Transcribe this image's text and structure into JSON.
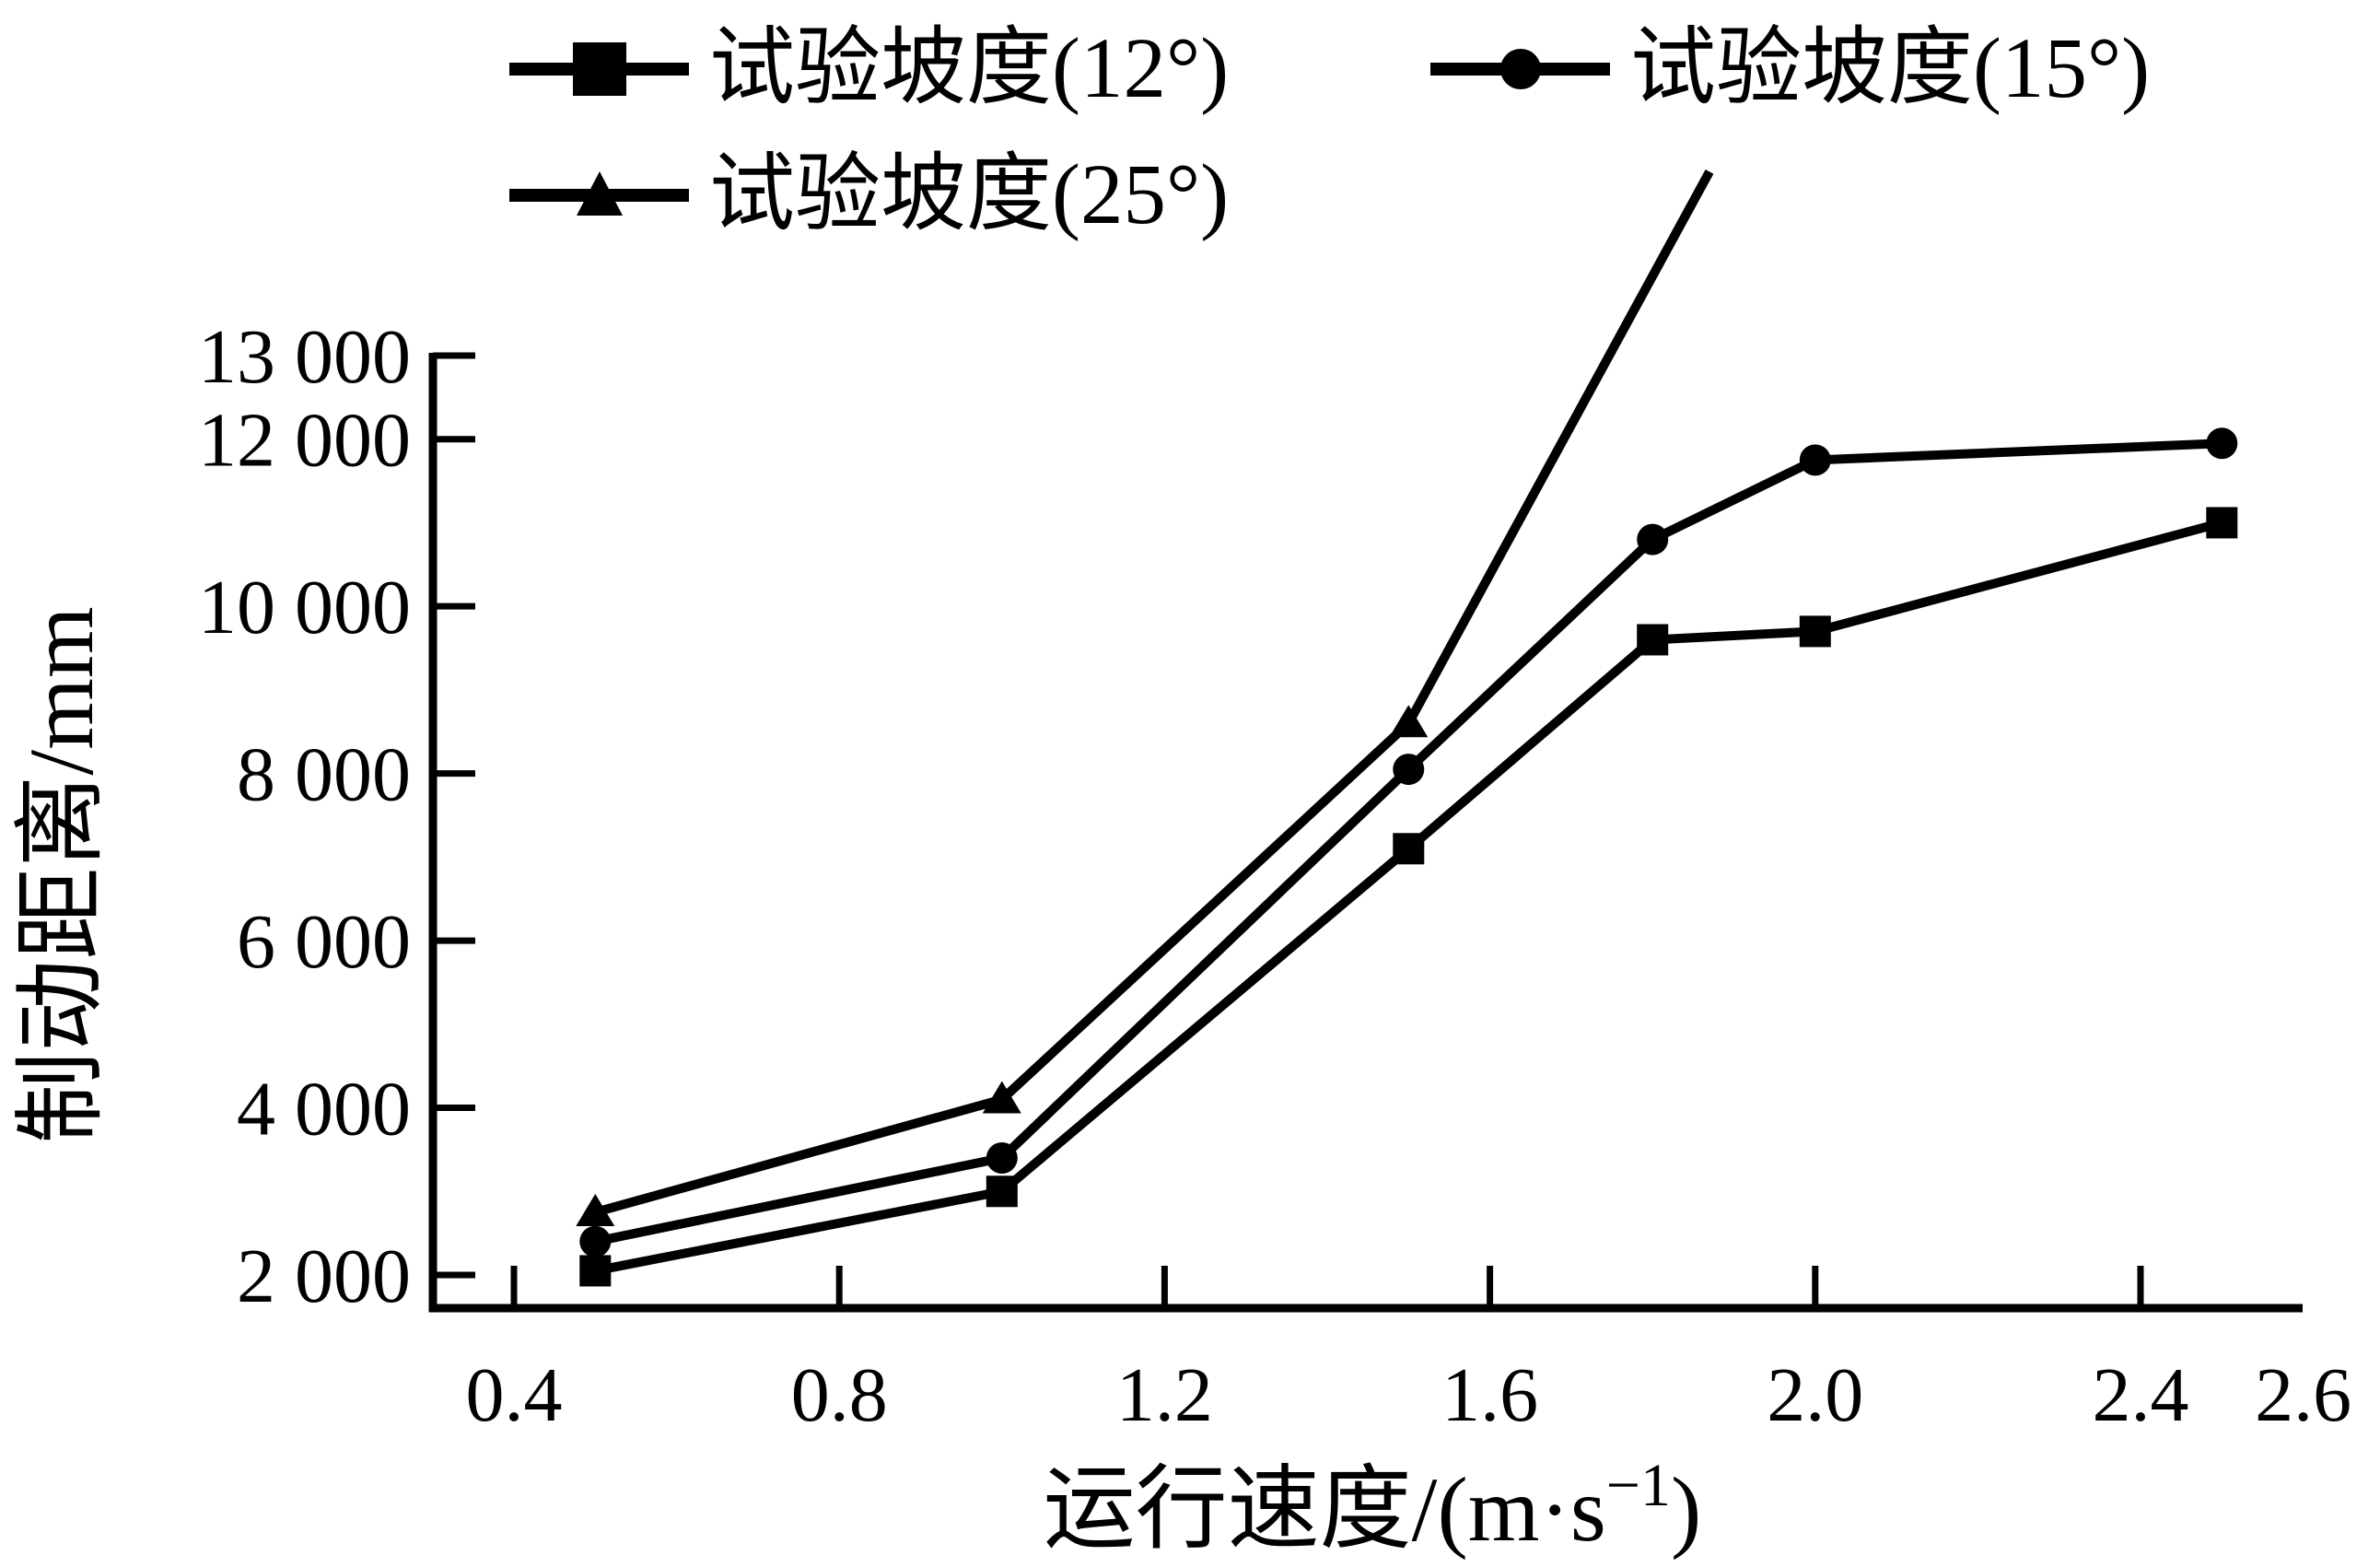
{
  "figure": {
    "background": "#ffffff",
    "ink": "#000000"
  },
  "legend": {
    "position": "top-left, two rows",
    "items": [
      {
        "label": "试验坡度(12°)",
        "marker": "square"
      },
      {
        "label": "试验坡度(15°)",
        "marker": "circle"
      },
      {
        "label": "试验坡度(25°)",
        "marker": "triangle"
      }
    ]
  },
  "chart_data": {
    "type": "line",
    "title": "",
    "xlabel": "运行速度/(m·s⁻¹)",
    "xlabel_parts": {
      "base": "运行速度/(m·s",
      "sup": "−1",
      "close": ")"
    },
    "ylabel": "制动距离/mm",
    "grid": false,
    "xlim": [
      0.3,
      2.6
    ],
    "ylim": [
      1600,
      13000
    ],
    "x_ticks": [
      {
        "value": 0.4,
        "label": "0.4"
      },
      {
        "value": 0.8,
        "label": "0.8"
      },
      {
        "value": 1.2,
        "label": "1.2"
      },
      {
        "value": 1.6,
        "label": "1.6"
      },
      {
        "value": 2.0,
        "label": "2.0"
      },
      {
        "value": 2.4,
        "label": "2.4"
      },
      {
        "value": 2.6,
        "label": "2.6",
        "no_tick_mark": true
      }
    ],
    "y_ticks": [
      {
        "value": 2000,
        "label": "2 000"
      },
      {
        "value": 4000,
        "label": "4 000"
      },
      {
        "value": 6000,
        "label": "6 000"
      },
      {
        "value": 8000,
        "label": "8 000"
      },
      {
        "value": 10000,
        "label": "10 000"
      },
      {
        "value": 12000,
        "label": "12 000"
      },
      {
        "value": 13000,
        "label": "13 000"
      }
    ],
    "series": [
      {
        "name": "试验坡度(12°)",
        "marker": "square",
        "points": [
          [
            0.5,
            2050
          ],
          [
            1.0,
            3000
          ],
          [
            1.5,
            7100
          ],
          [
            1.8,
            9600
          ],
          [
            2.0,
            9700
          ],
          [
            2.5,
            11000
          ]
        ]
      },
      {
        "name": "试验坡度(15°)",
        "marker": "circle",
        "points": [
          [
            0.5,
            2400
          ],
          [
            1.0,
            3400
          ],
          [
            1.5,
            8050
          ],
          [
            1.8,
            10800
          ],
          [
            2.0,
            11750
          ],
          [
            2.5,
            11950
          ]
        ]
      },
      {
        "name": "试验坡度(25°)",
        "marker": "triangle",
        "points": [
          [
            0.5,
            2750
          ],
          [
            1.0,
            4100
          ],
          [
            1.5,
            8600
          ]
        ],
        "offscale_segment_end": [
          1.87,
          15200
        ]
      }
    ]
  }
}
